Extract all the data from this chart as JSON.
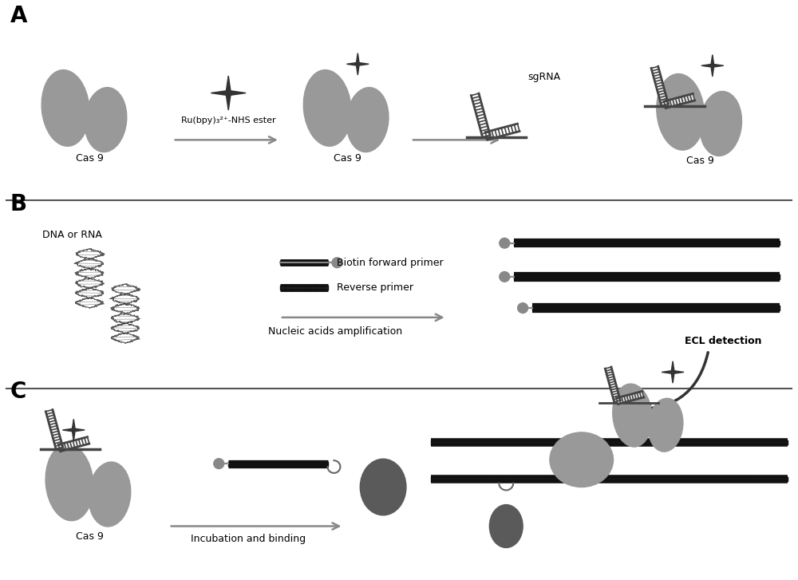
{
  "bg_color": "#ffffff",
  "gray_dark": "#444444",
  "gray_mid": "#888888",
  "gray_light": "#aaaaaa",
  "gray_protein": "#999999",
  "gray_protein_light": "#bbbbbb",
  "gray_sphere": "#666666",
  "gray_sphere_large": "#777777",
  "label_A": "A",
  "label_B": "B",
  "label_C": "C",
  "text_cas9": "Cas 9",
  "text_ru": "Ru(bpy)₃²⁺-NHS ester",
  "text_sgRNA": "sgRNA",
  "text_dna_rna": "DNA or RNA",
  "text_biotin": "Biotin forward primer",
  "text_reverse": "Reverse primer",
  "text_nucleic": "Nucleic acids amplification",
  "text_incubation": "Incubation and binding",
  "text_ecl": "ECL detection"
}
